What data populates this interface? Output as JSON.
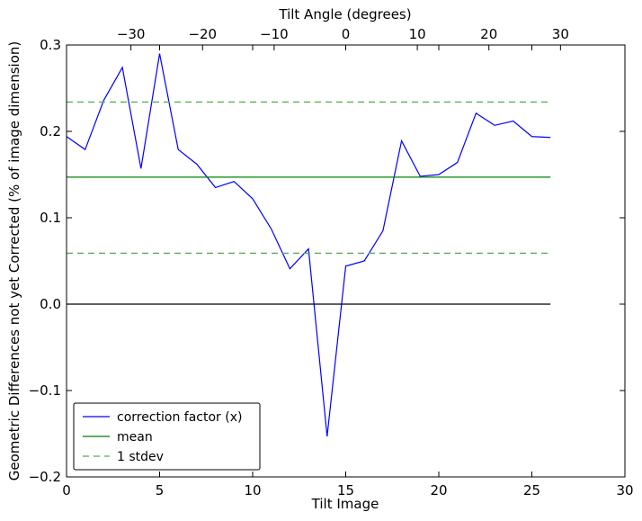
{
  "chart_data": {
    "type": "line",
    "xlabel": "Tilt Image",
    "ylabel": "Geometric Differences not yet Corrected (% of image dimension)",
    "top_xlabel": "Tilt Angle (degrees)",
    "xlim": [
      0,
      30
    ],
    "ylim": [
      -0.2,
      0.3
    ],
    "grid": false,
    "legend_position": "lower-left",
    "x_ticks": [
      0,
      5,
      10,
      15,
      20,
      25,
      30
    ],
    "x_tick_labels": [
      "0",
      "5",
      "10",
      "15",
      "20",
      "25",
      "30"
    ],
    "y_ticks": [
      -0.2,
      -0.1,
      0.0,
      0.1,
      0.2,
      0.3
    ],
    "y_tick_labels": [
      "−0.2",
      "−0.1",
      "0.0",
      "0.1",
      "0.2",
      "0.3"
    ],
    "top_axis_ticks": [
      -30,
      -20,
      -10,
      0,
      10,
      20,
      30
    ],
    "top_axis_tick_labels": [
      "−30",
      "−20",
      "−10",
      "0",
      "10",
      "20",
      "30"
    ],
    "top_axis_range": [
      -39,
      39
    ],
    "series": [
      {
        "name": "correction factor (x)",
        "color": "#0000ff",
        "style": "solid",
        "x": [
          0,
          1,
          2,
          3,
          4,
          5,
          6,
          7,
          8,
          9,
          10,
          11,
          12,
          13,
          14,
          15,
          16,
          17,
          18,
          19,
          20,
          21,
          22,
          23,
          24,
          25,
          26
        ],
        "y": [
          0.194,
          0.179,
          0.236,
          0.274,
          0.157,
          0.29,
          0.179,
          0.162,
          0.135,
          0.142,
          0.122,
          0.087,
          0.041,
          0.064,
          -0.153,
          0.044,
          0.05,
          0.085,
          0.189,
          0.148,
          0.15,
          0.164,
          0.221,
          0.207,
          0.212,
          0.194,
          0.193
        ]
      },
      {
        "name": "mean",
        "color": "#008000",
        "style": "solid",
        "x": [
          0,
          26
        ],
        "y": [
          0.147,
          0.147
        ]
      },
      {
        "name": "1 stdev",
        "color": "#55aa55",
        "style": "dashed",
        "x": [
          0,
          26
        ],
        "y": [
          0.234,
          0.234
        ]
      },
      {
        "name": "",
        "color": "#55aa55",
        "style": "dashed",
        "x": [
          0,
          26
        ],
        "y": [
          0.059,
          0.059
        ]
      },
      {
        "name": "",
        "color": "#000000",
        "style": "solid",
        "x": [
          0,
          26
        ],
        "y": [
          0.0,
          0.0
        ]
      }
    ]
  }
}
